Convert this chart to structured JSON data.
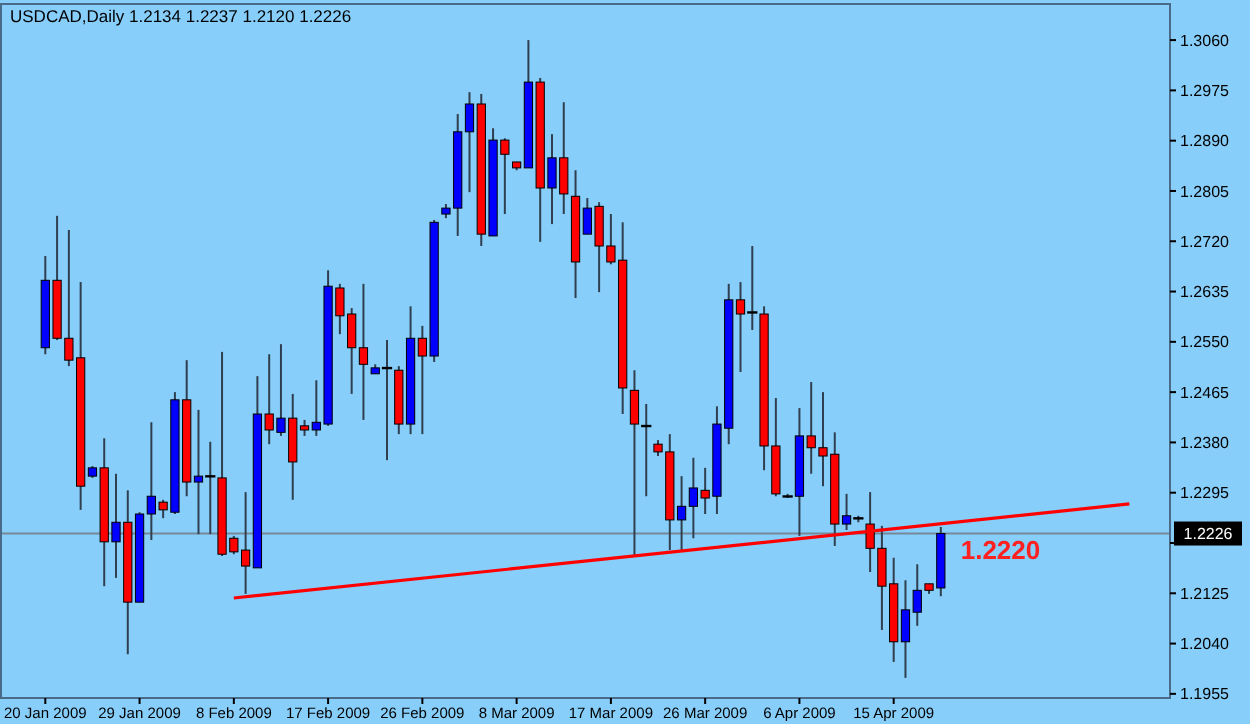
{
  "chart_data": {
    "type": "candlestick",
    "title": "USDCAD,Daily  1.2134 1.2237 1.2120 1.2226",
    "categories": [
      "20 Jan 2009",
      null,
      null,
      null,
      null,
      null,
      null,
      null,
      "29 Jan 2009",
      null,
      null,
      null,
      null,
      null,
      null,
      null,
      "8 Feb 2009",
      null,
      null,
      null,
      null,
      null,
      null,
      null,
      "17 Feb 2009",
      null,
      null,
      null,
      null,
      null,
      null,
      null,
      "26 Feb 2009",
      null,
      null,
      null,
      null,
      null,
      null,
      null,
      "8 Mar 2009",
      null,
      null,
      null,
      null,
      null,
      null,
      null,
      "17 Mar 2009",
      null,
      null,
      null,
      null,
      null,
      null,
      null,
      "26 Mar 2009",
      null,
      null,
      null,
      null,
      null,
      null,
      null,
      "6 Apr 2009",
      null,
      null,
      null,
      null,
      null,
      null,
      null,
      "15 Apr 2009",
      null,
      null,
      null,
      null,
      null,
      null,
      null,
      null,
      null,
      null,
      null,
      null,
      null,
      null,
      null,
      null,
      null,
      null,
      null,
      null,
      null,
      null,
      null
    ],
    "series": [
      {
        "colors": [
          "#0000ff",
          "#ff0000",
          "#ff0000",
          "#ff0000",
          "#0000ff",
          "#ff0000",
          "#0000ff",
          "#ff0000",
          "#0000ff",
          "#0000ff",
          "#ff0000",
          "#0000ff",
          "#ff0000",
          "#0000ff",
          "#000000",
          "#ff0000",
          "#ff0000",
          "#ff0000",
          "#0000ff",
          "#ff0000",
          "#0000ff",
          "#ff0000",
          "#ff0000",
          "#0000ff",
          "#0000ff",
          "#ff0000",
          "#ff0000",
          "#ff0000",
          "#0000ff",
          "#000000",
          "#ff0000",
          "#0000ff",
          "#ff0000",
          "#0000ff",
          "#0000ff",
          "#0000ff",
          "#0000ff",
          "#ff0000",
          "#0000ff",
          "#ff0000",
          "#ff0000",
          "#0000ff",
          "#ff0000",
          "#0000ff",
          "#ff0000",
          "#ff0000",
          "#0000ff",
          "#ff0000",
          "#ff0000",
          "#ff0000",
          "#ff0000",
          "#000000",
          "#ff0000",
          "#ff0000",
          "#0000ff",
          "#0000ff",
          "#ff0000",
          "#0000ff",
          "#0000ff",
          "#ff0000",
          "#000000",
          "#ff0000",
          "#ff0000",
          "#000000",
          "#0000ff",
          "#ff0000",
          "#ff0000",
          "#ff0000",
          "#0000ff",
          "#000000",
          "#ff0000",
          "#ff0000",
          "#ff0000",
          "#0000ff",
          "#0000ff",
          "#ff0000",
          "#0000ff",
          null,
          null,
          null,
          null,
          null,
          null,
          null,
          null,
          null,
          null,
          null,
          null,
          null,
          null,
          null,
          null,
          null,
          null,
          null
        ],
        "ohlc": [
          [
            1.254,
            1.2695,
            1.2529,
            1.2654
          ],
          [
            1.2654,
            1.2763,
            1.2553,
            1.2556
          ],
          [
            1.2556,
            1.2739,
            1.2509,
            1.2519
          ],
          [
            1.2523,
            1.2651,
            1.2266,
            1.2306
          ],
          [
            1.2323,
            1.234,
            1.232,
            1.2337
          ],
          [
            1.2337,
            1.2387,
            1.2137,
            1.2212
          ],
          [
            1.2212,
            1.2327,
            1.2151,
            1.2245
          ],
          [
            1.2245,
            1.2299,
            1.2022,
            1.211
          ],
          [
            1.211,
            1.2262,
            1.211,
            1.2259
          ],
          [
            1.2259,
            1.2414,
            1.2215,
            1.2289
          ],
          [
            1.2279,
            1.2283,
            1.2252,
            1.2266
          ],
          [
            1.2262,
            1.2465,
            1.2259,
            1.2452
          ],
          [
            1.2452,
            1.2519,
            1.2289,
            1.2313
          ],
          [
            1.2313,
            1.2435,
            1.2225,
            1.2323
          ],
          [
            1.2323,
            1.2381,
            1.2225,
            1.2323
          ],
          [
            1.232,
            1.2533,
            1.2188,
            1.2191
          ],
          [
            1.2218,
            1.2222,
            1.2191,
            1.2195
          ],
          [
            1.2198,
            1.2296,
            1.2124,
            1.2171
          ],
          [
            1.2168,
            1.2492,
            1.2168,
            1.2428
          ],
          [
            1.2428,
            1.2529,
            1.2377,
            1.2401
          ],
          [
            1.2397,
            1.2546,
            1.2391,
            1.2421
          ],
          [
            1.2421,
            1.2462,
            1.2283,
            1.2347
          ],
          [
            1.2408,
            1.2418,
            1.2391,
            1.2401
          ],
          [
            1.2401,
            1.2485,
            1.2391,
            1.2414
          ],
          [
            1.2411,
            1.2671,
            1.2408,
            1.2644
          ],
          [
            1.2641,
            1.2648,
            1.2563,
            1.2594
          ],
          [
            1.2597,
            1.2607,
            1.2462,
            1.254
          ],
          [
            1.254,
            1.2648,
            1.2418,
            1.2512
          ],
          [
            1.2496,
            1.2512,
            1.2496,
            1.2506
          ],
          [
            1.2506,
            1.2553,
            1.235,
            1.2506
          ],
          [
            1.2502,
            1.2509,
            1.2394,
            1.2411
          ],
          [
            1.2411,
            1.261,
            1.2394,
            1.2556
          ],
          [
            1.2556,
            1.2577,
            1.2394,
            1.2526
          ],
          [
            1.2526,
            1.2756,
            1.2516,
            1.2752
          ],
          [
            1.2766,
            1.2783,
            1.2759,
            1.2776
          ],
          [
            1.2776,
            1.2935,
            1.2729,
            1.2905
          ],
          [
            1.2905,
            1.2972,
            1.2803,
            1.2952
          ],
          [
            1.2952,
            1.2969,
            1.2712,
            1.2732
          ],
          [
            1.2729,
            1.2911,
            1.2729,
            1.2891
          ],
          [
            1.2891,
            1.2894,
            1.2766,
            1.2867
          ],
          [
            1.2854,
            1.2854,
            1.284,
            1.2844
          ],
          [
            1.2844,
            1.306,
            1.2844,
            1.2989
          ],
          [
            1.2989,
            1.2996,
            1.2719,
            1.281
          ],
          [
            1.281,
            1.2901,
            1.2749,
            1.2861
          ],
          [
            1.2861,
            1.2955,
            1.2766,
            1.28
          ],
          [
            1.2796,
            1.284,
            1.2624,
            1.2685
          ],
          [
            1.2732,
            1.2793,
            1.2732,
            1.2776
          ],
          [
            1.2779,
            1.2786,
            1.2634,
            1.2712
          ],
          [
            1.2712,
            1.2766,
            1.2681,
            1.2685
          ],
          [
            1.2688,
            1.2752,
            1.2428,
            1.2472
          ],
          [
            1.2468,
            1.2502,
            1.2188,
            1.2411
          ],
          [
            1.2408,
            1.2445,
            1.2289,
            1.2408
          ],
          [
            1.2377,
            1.2384,
            1.2357,
            1.2364
          ],
          [
            1.2364,
            1.2394,
            1.2198,
            1.2249
          ],
          [
            1.2249,
            1.2323,
            1.2198,
            1.2272
          ],
          [
            1.2272,
            1.2354,
            1.2218,
            1.2303
          ],
          [
            1.2299,
            1.2337,
            1.2259,
            1.2286
          ],
          [
            1.2289,
            1.2441,
            1.2259,
            1.2411
          ],
          [
            1.2404,
            1.2648,
            1.2377,
            1.2621
          ],
          [
            1.2621,
            1.2651,
            1.2499,
            1.2597
          ],
          [
            1.26,
            1.2712,
            1.257,
            1.26
          ],
          [
            1.2597,
            1.261,
            1.2333,
            1.2374
          ],
          [
            1.2374,
            1.2455,
            1.2289,
            1.2293
          ],
          [
            1.2289,
            1.2293,
            1.2286,
            1.2289
          ],
          [
            1.2289,
            1.2438,
            1.2222,
            1.2391
          ],
          [
            1.2391,
            1.2482,
            1.2327,
            1.2371
          ],
          [
            1.2371,
            1.2465,
            1.2306,
            1.2357
          ],
          [
            1.236,
            1.2397,
            1.2205,
            1.2242
          ],
          [
            1.2242,
            1.2293,
            1.2232,
            1.2256
          ],
          [
            1.2252,
            1.2256,
            1.2245,
            1.2252
          ],
          [
            1.2242,
            1.2296,
            1.2161,
            1.2201
          ],
          [
            1.2201,
            1.2239,
            1.2063,
            1.2137
          ],
          [
            1.2141,
            1.2185,
            1.2009,
            1.2043
          ],
          [
            1.2043,
            1.2147,
            1.1982,
            1.2097
          ],
          [
            1.2093,
            1.2174,
            1.207,
            1.213
          ],
          [
            1.2141,
            1.2141,
            1.2124,
            1.213
          ],
          [
            1.2134,
            1.2237,
            1.212,
            1.2226
          ],
          null,
          null,
          null,
          null,
          null,
          null,
          null,
          null,
          null,
          null,
          null,
          null,
          null,
          null,
          null,
          null,
          null,
          null,
          null
        ]
      },
      {
        "type": "line",
        "color": "#ff0000",
        "values": [
          null,
          null,
          null,
          null,
          null,
          null,
          null,
          null,
          null,
          null,
          null,
          null,
          null,
          null,
          null,
          null,
          1.2117,
          null,
          null,
          null,
          null,
          null,
          null,
          null,
          null,
          null,
          null,
          null,
          null,
          null,
          null,
          null,
          null,
          null,
          null,
          null,
          null,
          null,
          null,
          null,
          null,
          null,
          null,
          null,
          null,
          null,
          null,
          null,
          null,
          null,
          null,
          null,
          null,
          null,
          null,
          null,
          null,
          null,
          null,
          null,
          null,
          null,
          null,
          null,
          null,
          null,
          null,
          null,
          null,
          null,
          null,
          null,
          null,
          null,
          null,
          null,
          null,
          null,
          null,
          null,
          null,
          null,
          null,
          null,
          null,
          null,
          null,
          null,
          null,
          null,
          null,
          null,
          1.2276,
          null,
          null,
          null
        ]
      }
    ],
    "ylim": [
      1.1948,
      1.3121
    ],
    "yticks": [
      {
        "value": 1.306,
        "label": "1.3060"
      },
      1.2975,
      {
        "value": 1.289,
        "label": "1.2890"
      },
      1.2805,
      {
        "value": 1.272,
        "label": "1.2720"
      },
      1.2635,
      {
        "value": 1.255,
        "label": "1.2550"
      },
      1.2465,
      {
        "value": 1.238,
        "label": "1.2380"
      },
      1.2295,
      {
        "value": 1.221,
        "label": null
      },
      1.2125,
      {
        "value": 1.204,
        "label": "1.2040"
      },
      1.1955
    ],
    "ref_lines": [
      {
        "axis": "y",
        "value": 1.2226,
        "label": "1.2226",
        "color": "#778899"
      }
    ],
    "annotations": [
      "1.2220"
    ]
  }
}
